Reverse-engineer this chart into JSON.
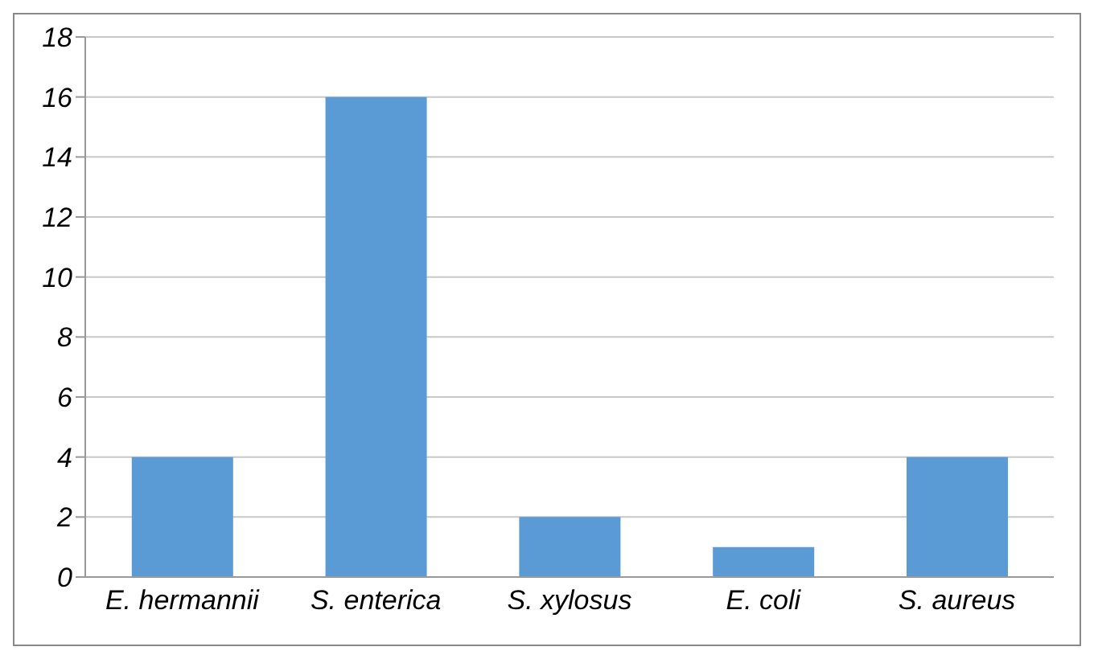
{
  "chart_data": {
    "type": "bar",
    "categories": [
      "E. hermannii",
      "S. enterica",
      "S. xylosus",
      "E. coli",
      "S. aureus"
    ],
    "values": [
      4,
      16,
      2,
      1,
      4
    ],
    "color": "#5b9bd5",
    "ylim": [
      0,
      18
    ],
    "yticks": [
      0,
      2,
      4,
      6,
      8,
      10,
      12,
      14,
      16,
      18
    ],
    "grid": "y"
  }
}
